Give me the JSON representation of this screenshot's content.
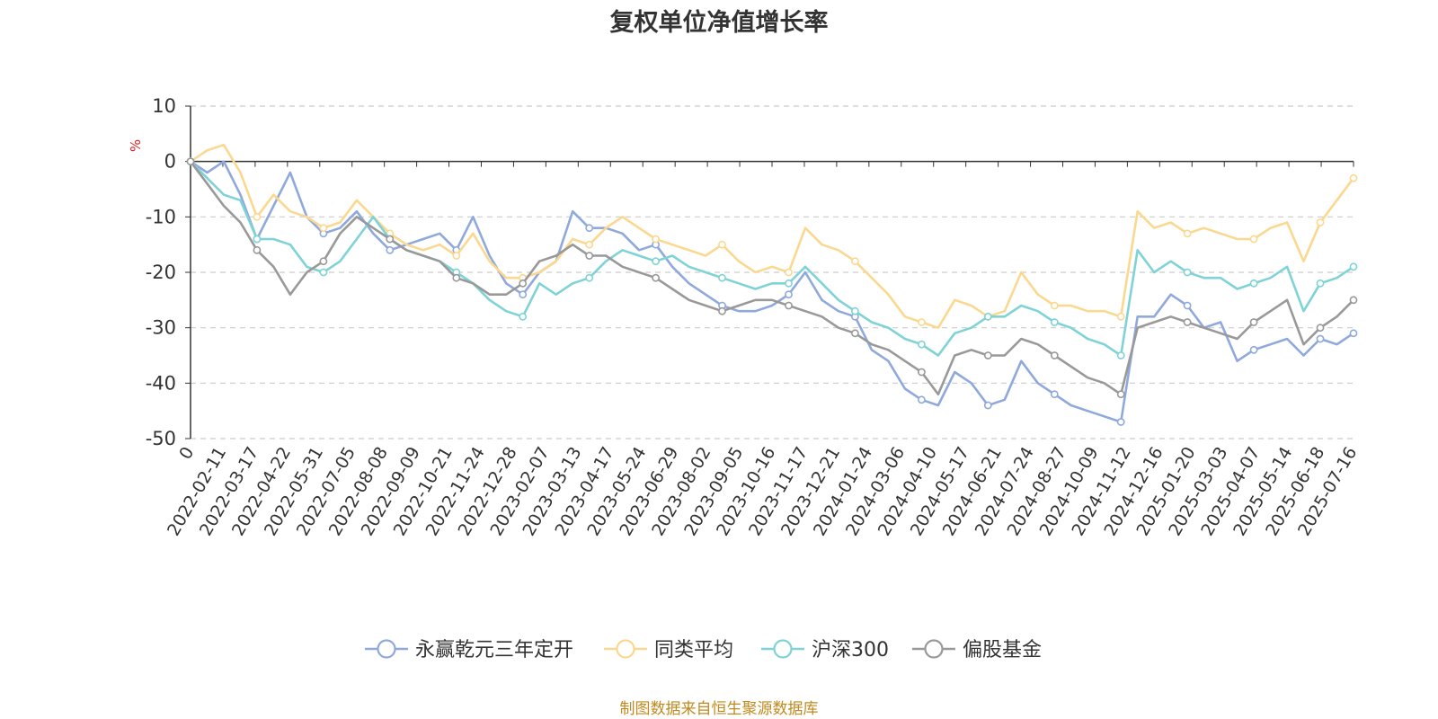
{
  "chart_data": {
    "type": "line",
    "title": "复权单位净值增长率",
    "ylabel": "%",
    "ylim": [
      -50,
      10
    ],
    "yticks": [
      "10",
      "0",
      "-10",
      "-20",
      "-30",
      "-40",
      "-50"
    ],
    "grid": "horizontal-dashed",
    "legend_position": "bottom",
    "x_tick_labels": [
      "0",
      "2022-02-11",
      "2022-03-17",
      "2022-04-22",
      "2022-05-31",
      "2022-07-05",
      "2022-08-08",
      "2022-09-09",
      "2022-10-21",
      "2022-11-24",
      "2022-12-28",
      "2023-02-07",
      "2023-03-13",
      "2023-04-17",
      "2023-05-24",
      "2023-06-29",
      "2023-08-02",
      "2023-09-05",
      "2023-10-16",
      "2023-11-17",
      "2023-12-21",
      "2024-01-24",
      "2024-03-06",
      "2024-04-10",
      "2024-05-17",
      "2024-06-21",
      "2024-07-24",
      "2024-08-27",
      "2024-10-09",
      "2024-11-12",
      "2024-12-16",
      "2025-01-20",
      "2025-03-03",
      "2025-04-07",
      "2025-05-14",
      "2025-06-18",
      "2025-07-16"
    ],
    "series": [
      {
        "name": "永赢乾元三年定开",
        "color": "#8fa9dc",
        "values": [
          0,
          -2,
          0,
          -6,
          -14,
          -8,
          -2,
          -10,
          -13,
          -12,
          -9,
          -13,
          -16,
          -15,
          -14,
          -13,
          -16,
          -10,
          -17,
          -22,
          -24,
          -20,
          -18,
          -9,
          -12,
          -12,
          -13,
          -16,
          -15,
          -19,
          -22,
          -24,
          -26,
          -27,
          -27,
          -26,
          -24,
          -20,
          -25,
          -27,
          -28,
          -34,
          -36,
          -41,
          -43,
          -44,
          -38,
          -40,
          -44,
          -43,
          -36,
          -40,
          -42,
          -44,
          -45,
          -46,
          -47,
          -28,
          -28,
          -24,
          -26,
          -30,
          -29,
          -36,
          -34,
          -33,
          -32,
          -35,
          -32,
          -33,
          -31
        ]
      },
      {
        "name": "同类平均",
        "color": "#fbd88f",
        "values": [
          0,
          2,
          3,
          -2,
          -10,
          -6,
          -9,
          -10,
          -12,
          -11,
          -7,
          -10,
          -13,
          -15,
          -16,
          -15,
          -17,
          -13,
          -18,
          -21,
          -21,
          -20,
          -18,
          -14,
          -15,
          -12,
          -10,
          -12,
          -14,
          -15,
          -16,
          -17,
          -15,
          -18,
          -20,
          -19,
          -20,
          -12,
          -15,
          -16,
          -18,
          -21,
          -24,
          -28,
          -29,
          -30,
          -25,
          -26,
          -28,
          -27,
          -20,
          -24,
          -26,
          -26,
          -27,
          -27,
          -28,
          -9,
          -12,
          -11,
          -13,
          -12,
          -13,
          -14,
          -14,
          -12,
          -11,
          -18,
          -11,
          -7,
          -3
        ]
      },
      {
        "name": "沪深300",
        "color": "#7fd3d6",
        "values": [
          0,
          -3,
          -6,
          -7,
          -14,
          -14,
          -15,
          -19,
          -20,
          -18,
          -14,
          -10,
          -14,
          -16,
          -17,
          -18,
          -20,
          -22,
          -25,
          -27,
          -28,
          -22,
          -24,
          -22,
          -21,
          -18,
          -16,
          -17,
          -18,
          -17,
          -19,
          -20,
          -21,
          -22,
          -23,
          -22,
          -22,
          -19,
          -22,
          -25,
          -27,
          -29,
          -30,
          -32,
          -33,
          -35,
          -31,
          -30,
          -28,
          -28,
          -26,
          -27,
          -29,
          -30,
          -32,
          -33,
          -35,
          -16,
          -20,
          -18,
          -20,
          -21,
          -21,
          -23,
          -22,
          -21,
          -19,
          -27,
          -22,
          -21,
          -19
        ]
      },
      {
        "name": "偏股基金",
        "color": "#999999",
        "values": [
          0,
          -4,
          -8,
          -11,
          -16,
          -19,
          -24,
          -20,
          -18,
          -13,
          -10,
          -12,
          -14,
          -16,
          -17,
          -18,
          -21,
          -22,
          -24,
          -24,
          -22,
          -18,
          -17,
          -15,
          -17,
          -17,
          -19,
          -20,
          -21,
          -23,
          -25,
          -26,
          -27,
          -26,
          -25,
          -25,
          -26,
          -27,
          -28,
          -30,
          -31,
          -33,
          -34,
          -36,
          -38,
          -42,
          -35,
          -34,
          -35,
          -35,
          -32,
          -33,
          -35,
          -37,
          -39,
          -40,
          -42,
          -30,
          -29,
          -28,
          -29,
          -30,
          -31,
          -32,
          -29,
          -27,
          -25,
          -33,
          -30,
          -28,
          -25
        ]
      }
    ],
    "source_note": "制图数据来自恒生聚源数据库"
  }
}
